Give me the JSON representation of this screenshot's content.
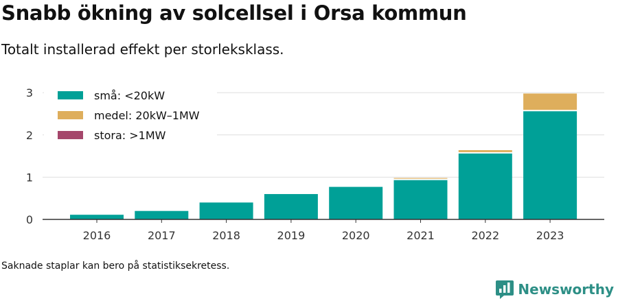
{
  "header": {
    "title": "Snabb ökning av solcellsel i Orsa kommun",
    "subtitle": "Totalt installerad effekt per storleksklass."
  },
  "footer": {
    "note": "Saknade staplar kan bero på statistiksekretess.",
    "brand": "Newsworthy"
  },
  "icons": {
    "brand_logo": "bar-chart-speech-bubble-icon"
  },
  "chart_data": {
    "type": "bar",
    "stacked": true,
    "categories": [
      "2016",
      "2017",
      "2018",
      "2019",
      "2020",
      "2021",
      "2022",
      "2023"
    ],
    "series": [
      {
        "name": "små: <20kW",
        "color": "#00a097",
        "values": [
          0.11,
          0.2,
          0.4,
          0.6,
          0.77,
          0.93,
          1.56,
          2.56
        ]
      },
      {
        "name": "medel: 20kW–1MW",
        "color": "#deae5c",
        "values": [
          0,
          0,
          0,
          0,
          0,
          0.05,
          0.08,
          0.42
        ]
      },
      {
        "name": "stora: >1MW",
        "color": "#a5466b",
        "values": [
          0,
          0,
          0,
          0,
          0,
          0,
          0,
          0
        ]
      }
    ],
    "yticks": [
      "0",
      "1",
      "2",
      "3"
    ],
    "ylim": [
      0,
      3.1
    ],
    "grid": true,
    "legend": "top-left"
  }
}
